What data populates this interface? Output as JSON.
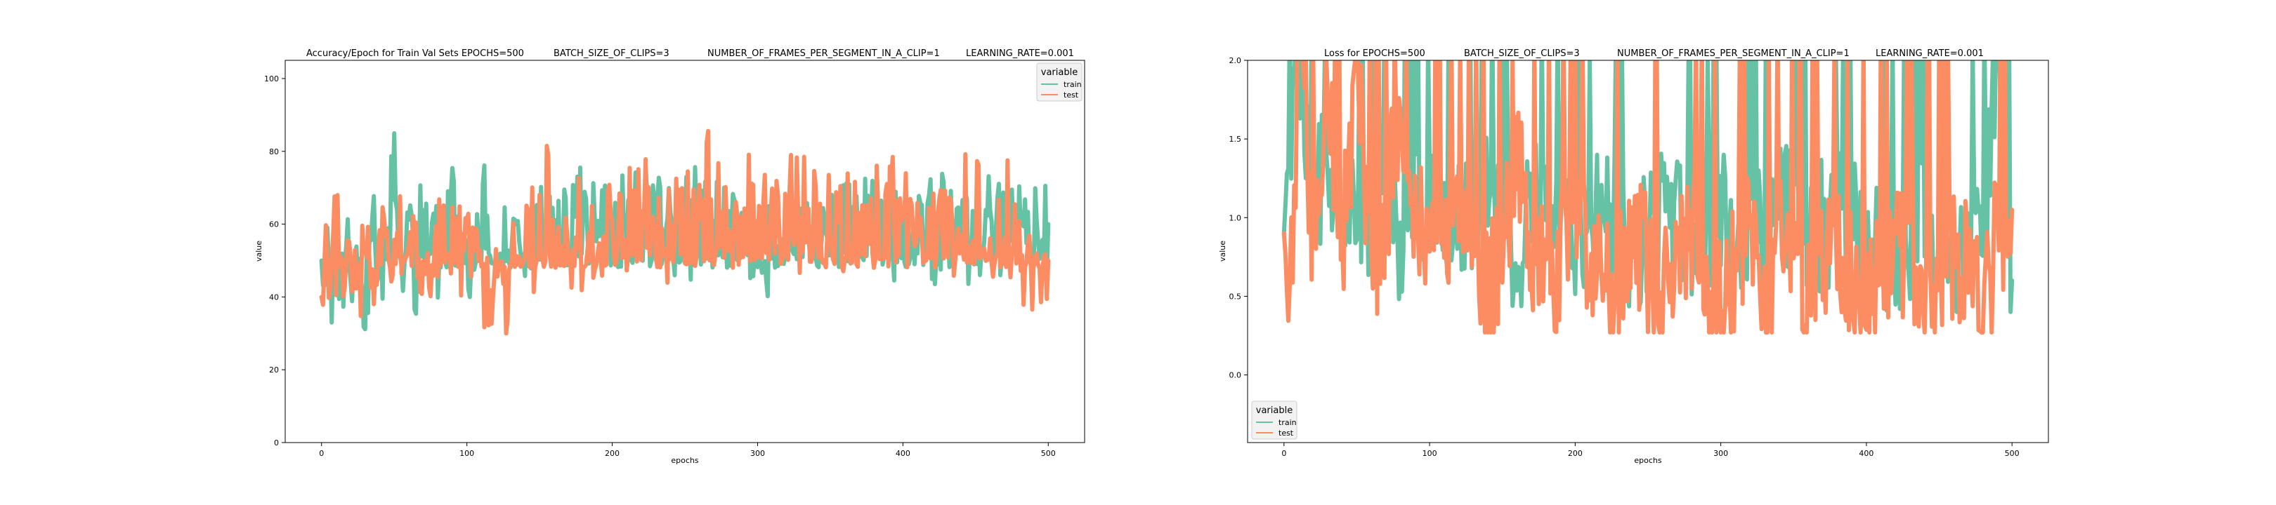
{
  "chart_data": [
    {
      "type": "line",
      "title_parts": [
        "Accuracy/Epoch for Train Val Sets EPOCHS=500",
        "BATCH_SIZE_OF_CLIPS=3",
        "NUMBER_OF_FRAMES_PER_SEGMENT_IN_A_CLIP=1",
        "LEARNING_RATE=0.001"
      ],
      "xlabel": "epochs",
      "ylabel": "value",
      "xlim": [
        -25,
        525
      ],
      "ylim": [
        0,
        105
      ],
      "xticks": [
        0,
        100,
        200,
        300,
        400,
        500
      ],
      "yticks": [
        0,
        20,
        40,
        60,
        80,
        100
      ],
      "ytick_labels": [
        "0",
        "20",
        "40",
        "60",
        "80",
        "100"
      ],
      "grid": false,
      "legend": {
        "title": "variable",
        "placement": "top-right"
      },
      "series": [
        {
          "name": "train",
          "color": "#66c2a5",
          "line_width": 6,
          "value_range": [
            29,
            86
          ],
          "keypoints": [
            [
              0,
              50
            ],
            [
              2,
              35
            ],
            [
              4,
              60
            ],
            [
              7,
              33
            ],
            [
              10,
              55
            ],
            [
              14,
              40
            ],
            [
              18,
              62
            ],
            [
              22,
              38
            ],
            [
              26,
              55
            ],
            [
              30,
              29
            ],
            [
              35,
              60
            ],
            [
              40,
              38
            ],
            [
              45,
              58
            ],
            [
              50,
              78
            ],
            [
              55,
              50
            ],
            [
              60,
              66
            ],
            [
              65,
              45
            ],
            [
              70,
              62
            ],
            [
              80,
              55
            ],
            [
              90,
              65
            ],
            [
              100,
              50
            ],
            [
              110,
              62
            ],
            [
              120,
              55
            ],
            [
              130,
              58
            ],
            [
              140,
              55
            ],
            [
              150,
              62
            ],
            [
              160,
              60
            ],
            [
              170,
              60
            ],
            [
              180,
              63
            ],
            [
              190,
              60
            ],
            [
              200,
              65
            ],
            [
              220,
              60
            ],
            [
              240,
              62
            ],
            [
              250,
              57
            ],
            [
              260,
              63
            ],
            [
              270,
              60
            ],
            [
              280,
              70
            ],
            [
              290,
              58
            ],
            [
              300,
              55
            ],
            [
              310,
              58
            ],
            [
              320,
              60
            ],
            [
              330,
              55
            ],
            [
              340,
              65
            ],
            [
              350,
              58
            ],
            [
              360,
              62
            ],
            [
              370,
              65
            ],
            [
              380,
              62
            ],
            [
              390,
              60
            ],
            [
              400,
              63
            ],
            [
              420,
              60
            ],
            [
              440,
              62
            ],
            [
              450,
              55
            ],
            [
              460,
              65
            ],
            [
              470,
              60
            ],
            [
              480,
              63
            ],
            [
              490,
              65
            ],
            [
              500,
              60
            ]
          ]
        },
        {
          "name": "test",
          "color": "#fc8d62",
          "line_width": 6,
          "value_range": [
            30,
            90
          ],
          "keypoints": [
            [
              0,
              40
            ],
            [
              5,
              50
            ],
            [
              10,
              50
            ],
            [
              20,
              50
            ],
            [
              30,
              50
            ],
            [
              40,
              55
            ],
            [
              50,
              52
            ],
            [
              60,
              55
            ],
            [
              70,
              50
            ],
            [
              80,
              55
            ],
            [
              90,
              60
            ],
            [
              100,
              55
            ],
            [
              110,
              50
            ],
            [
              115,
              30
            ],
            [
              120,
              55
            ],
            [
              127,
              30
            ],
            [
              130,
              55
            ],
            [
              140,
              55
            ],
            [
              150,
              60
            ],
            [
              157,
              90
            ],
            [
              160,
              55
            ],
            [
              170,
              60
            ],
            [
              180,
              55
            ],
            [
              190,
              55
            ],
            [
              200,
              58
            ],
            [
              210,
              60
            ],
            [
              220,
              60
            ],
            [
              230,
              60
            ],
            [
              240,
              62
            ],
            [
              250,
              60
            ],
            [
              260,
              63
            ],
            [
              265,
              90
            ],
            [
              270,
              62
            ],
            [
              280,
              60
            ],
            [
              290,
              62
            ],
            [
              300,
              60
            ],
            [
              320,
              62
            ],
            [
              340,
              60
            ],
            [
              360,
              65
            ],
            [
              380,
              60
            ],
            [
              400,
              62
            ],
            [
              420,
              60
            ],
            [
              440,
              62
            ],
            [
              460,
              60
            ],
            [
              480,
              60
            ],
            [
              490,
              40
            ],
            [
              500,
              50
            ]
          ]
        }
      ]
    },
    {
      "type": "line",
      "title_parts": [
        "Loss for  EPOCHS=500",
        "BATCH_SIZE_OF_CLIPS=3",
        "NUMBER_OF_FRAMES_PER_SEGMENT_IN_A_CLIP=1",
        "LEARNING_RATE=0.001"
      ],
      "xlabel": "epochs",
      "ylabel": "value",
      "xlim": [
        -25,
        525
      ],
      "ylim": [
        -0.43,
        2.0
      ],
      "xticks": [
        0,
        100,
        200,
        300,
        400,
        500
      ],
      "yticks": [
        0.0,
        0.5,
        1.0,
        1.5,
        2.0
      ],
      "ytick_labels": [
        "0.0",
        "0.5",
        "1.0",
        "1.5",
        "2.0"
      ],
      "grid": false,
      "legend": {
        "title": "variable",
        "placement": "bottom-left"
      },
      "series": [
        {
          "name": "train",
          "color": "#66c2a5",
          "line_width": 6,
          "value_range": [
            0.4,
            2.0
          ],
          "keypoints": [
            [
              0,
              0.9
            ],
            [
              5,
              1.6
            ],
            [
              10,
              2.0
            ],
            [
              20,
              1.0
            ],
            [
              30,
              1.5
            ],
            [
              40,
              0.7
            ],
            [
              50,
              1.2
            ],
            [
              60,
              0.9
            ],
            [
              70,
              1.5
            ],
            [
              80,
              0.8
            ],
            [
              100,
              1.2
            ],
            [
              120,
              0.9
            ],
            [
              140,
              1.1
            ],
            [
              160,
              0.8
            ],
            [
              180,
              1.2
            ],
            [
              200,
              0.9
            ],
            [
              220,
              1.0
            ],
            [
              240,
              0.8
            ],
            [
              260,
              1.1
            ],
            [
              280,
              0.9
            ],
            [
              300,
              1.0
            ],
            [
              320,
              0.8
            ],
            [
              340,
              1.1
            ],
            [
              360,
              0.9
            ],
            [
              380,
              1.0
            ],
            [
              400,
              0.9
            ],
            [
              420,
              0.8
            ],
            [
              440,
              1.0
            ],
            [
              460,
              0.7
            ],
            [
              480,
              0.9
            ],
            [
              490,
              2.0
            ],
            [
              500,
              0.6
            ]
          ]
        },
        {
          "name": "test",
          "color": "#fc8d62",
          "line_width": 6,
          "value_range": [
            0.27,
            2.0
          ],
          "keypoints": [
            [
              0,
              0.9
            ],
            [
              5,
              0.7
            ],
            [
              10,
              2.0
            ],
            [
              20,
              0.8
            ],
            [
              30,
              2.0
            ],
            [
              40,
              0.7
            ],
            [
              50,
              2.0
            ],
            [
              60,
              0.6
            ],
            [
              80,
              1.5
            ],
            [
              100,
              0.6
            ],
            [
              120,
              1.2
            ],
            [
              140,
              0.5
            ],
            [
              160,
              1.3
            ],
            [
              180,
              0.5
            ],
            [
              200,
              1.0
            ],
            [
              220,
              0.5
            ],
            [
              240,
              0.9
            ],
            [
              260,
              0.5
            ],
            [
              280,
              1.0
            ],
            [
              300,
              0.4
            ],
            [
              320,
              0.9
            ],
            [
              330,
              0.27
            ],
            [
              340,
              0.8
            ],
            [
              360,
              0.5
            ],
            [
              380,
              0.9
            ],
            [
              400,
              0.5
            ],
            [
              420,
              0.9
            ],
            [
              440,
              0.5
            ],
            [
              460,
              0.8
            ],
            [
              480,
              0.5
            ],
            [
              495,
              1.0
            ],
            [
              500,
              1.05
            ]
          ]
        }
      ]
    }
  ]
}
